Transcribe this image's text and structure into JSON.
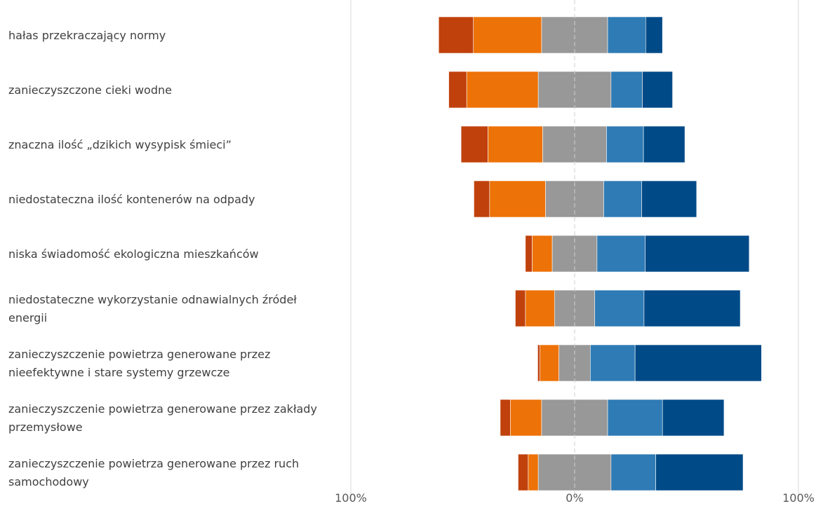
{
  "chart_data": {
    "type": "bar",
    "subtype": "diverging-stacked-horizontal",
    "title": "",
    "xlabel": "",
    "ylabel": "",
    "xlim": [
      -100,
      100
    ],
    "x_ticks": [
      -100,
      0,
      100
    ],
    "x_tick_labels": [
      "100%",
      "0%",
      "100%"
    ],
    "grid": true,
    "legend": "none",
    "categories": [
      "hałas przekraczający normy",
      "zanieczyszczone cieki wodne",
      "znaczna ilość „dzikich wysypisk śmieci”",
      "niedostateczna ilość kontenerów na odpady",
      "niska świadomość ekologiczna mieszkańców",
      "niedostateczne wykorzystanie odnawialnych źródeł energii",
      "zanieczyszczenie powietrza generowane przez nieefektywne i stare systemy grzewcze",
      "zanieczyszczenie powietrza generowane przez zakłady przemysłowe",
      "zanieczyszczenie powietrza generowane przez ruch samochodowy"
    ],
    "category_lines": [
      [
        "hałas przekraczający normy"
      ],
      [
        "zanieczyszczone cieki wodne"
      ],
      [
        "znaczna ilość „dzikich wysypisk śmieci”"
      ],
      [
        "niedostateczna ilość kontenerów na odpady"
      ],
      [
        "niska świadomość ekologiczna mieszkańców"
      ],
      [
        "niedostateczne wykorzystanie odnawialnych źródeł",
        "energii"
      ],
      [
        "zanieczyszczenie powietrza generowane przez",
        "nieefektywne i stare systemy grzewcze"
      ],
      [
        "zanieczyszczenie powietrza generowane przez zakłady",
        "przemysłowe"
      ],
      [
        "zanieczyszczenie powietrza generowane przez ruch",
        "samochodowy"
      ]
    ],
    "series": [
      {
        "color": "#c0410c",
        "side": "left",
        "values": [
          15.5,
          8,
          12,
          7,
          3,
          4.5,
          1,
          4.5,
          4.5
        ]
      },
      {
        "color": "#ed7208",
        "side": "left",
        "values": [
          30.5,
          32,
          24.5,
          25,
          9,
          13,
          8.5,
          14,
          4.5
        ]
      },
      {
        "color": "#989898",
        "side": "center",
        "values": [
          29.5,
          32.5,
          28.5,
          26,
          20,
          18,
          14,
          29.5,
          32.5
        ]
      },
      {
        "color": "#2f7bb5",
        "side": "right",
        "values": [
          17,
          14,
          16.5,
          17,
          21.5,
          22,
          20,
          24.5,
          20
        ]
      },
      {
        "color": "#004a88",
        "side": "right",
        "values": [
          7.5,
          13.5,
          18.5,
          24.5,
          46.5,
          43,
          56.5,
          27.5,
          39
        ]
      }
    ]
  }
}
